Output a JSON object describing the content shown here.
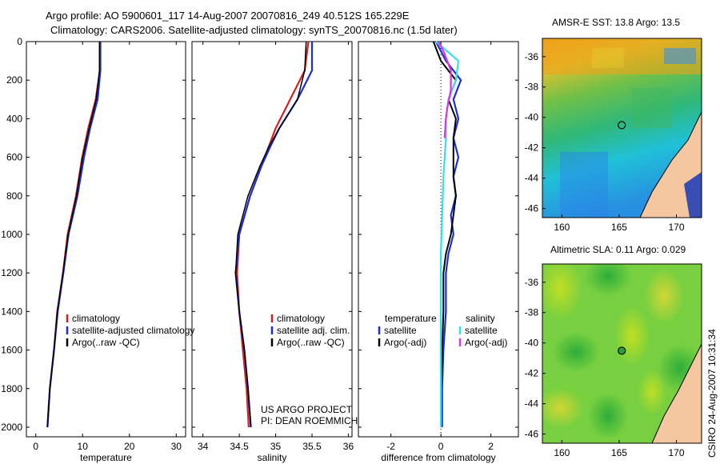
{
  "titles": {
    "line1": "Argo profile: AO 5900601_117 14-Aug-2007 20070816_249 40.512S 165.229E",
    "line2": "Climatology: CARS2006. Satellite-adjusted climatology: synTS_20070816.nc (1.5d later)"
  },
  "credit": "CSIRO 24-Aug-2007 10:31:34",
  "colors": {
    "climatology": "#d62020",
    "satellite": "#1a2fd6",
    "argo": "#000000",
    "satellite_salinity": "#33e0e8",
    "argo_adj_salinity": "#e030e0",
    "land": "#f5c7a0"
  },
  "chart_data": [
    {
      "type": "line",
      "xlabel": "temperature",
      "ylabel": "",
      "xlim": [
        -2,
        32
      ],
      "ylim": [
        2050,
        0
      ],
      "xticks": [
        "0",
        "10",
        "20",
        "30"
      ],
      "yticks": [
        "0",
        "200",
        "400",
        "600",
        "800",
        "1000",
        "1200",
        "1400",
        "1600",
        "1800",
        "2000"
      ],
      "legend_items": [
        "climatology",
        "satellite-adjusted climatology",
        "Argo(..raw -QC)"
      ],
      "series": [
        {
          "name": "climatology",
          "points": [
            [
              13.8,
              0
            ],
            [
              13.7,
              150
            ],
            [
              12.8,
              300
            ],
            [
              11.2,
              450
            ],
            [
              9.9,
              600
            ],
            [
              8.6,
              800
            ],
            [
              6.8,
              1000
            ],
            [
              5.8,
              1200
            ],
            [
              4.6,
              1400
            ],
            [
              3.9,
              1600
            ],
            [
              3.0,
              1800
            ],
            [
              2.5,
              2000
            ]
          ]
        },
        {
          "name": "satellite-adjusted climatology",
          "points": [
            [
              13.8,
              0
            ],
            [
              13.8,
              150
            ],
            [
              13.2,
              300
            ],
            [
              11.6,
              450
            ],
            [
              10.3,
              600
            ],
            [
              8.9,
              800
            ],
            [
              7.0,
              1000
            ],
            [
              5.9,
              1200
            ],
            [
              4.7,
              1400
            ],
            [
              3.9,
              1600
            ],
            [
              3.0,
              1800
            ],
            [
              2.5,
              2000
            ]
          ]
        },
        {
          "name": "Argo(..raw -QC)",
          "points": [
            [
              13.6,
              0
            ],
            [
              13.6,
              150
            ],
            [
              12.9,
              300
            ],
            [
              11.4,
              450
            ],
            [
              10.0,
              600
            ],
            [
              8.7,
              800
            ],
            [
              6.9,
              1000
            ],
            [
              5.8,
              1200
            ],
            [
              4.6,
              1400
            ],
            [
              3.9,
              1600
            ],
            [
              3.0,
              1800
            ],
            [
              2.5,
              2000
            ]
          ]
        }
      ]
    },
    {
      "type": "line",
      "xlabel": "salinity",
      "ylabel": "",
      "xlim": [
        33.85,
        36.05
      ],
      "ylim": [
        2050,
        0
      ],
      "xticks": [
        "34",
        "34.5",
        "35",
        "35.5",
        "36"
      ],
      "legend_items": [
        "climatology",
        "satellite adj. clim.",
        "Argo(..raw -QC)"
      ],
      "annotations": [
        "US ARGO PROJECT",
        "PI: DEAN ROEMMICH"
      ],
      "series": [
        {
          "name": "climatology",
          "points": [
            [
              35.45,
              0
            ],
            [
              35.4,
              150
            ],
            [
              35.2,
              300
            ],
            [
              35.0,
              450
            ],
            [
              34.9,
              550
            ],
            [
              34.8,
              650
            ],
            [
              34.65,
              800
            ],
            [
              34.5,
              1000
            ],
            [
              34.47,
              1200
            ],
            [
              34.5,
              1400
            ],
            [
              34.55,
              1600
            ],
            [
              34.6,
              1800
            ],
            [
              34.63,
              2000
            ]
          ]
        },
        {
          "name": "satellite adj. clim.",
          "points": [
            [
              35.5,
              0
            ],
            [
              35.5,
              150
            ],
            [
              35.3,
              300
            ],
            [
              35.05,
              450
            ],
            [
              34.92,
              550
            ],
            [
              34.8,
              650
            ],
            [
              34.65,
              800
            ],
            [
              34.5,
              1000
            ],
            [
              34.45,
              1200
            ],
            [
              34.5,
              1400
            ],
            [
              34.57,
              1600
            ],
            [
              34.62,
              1800
            ],
            [
              34.66,
              2000
            ]
          ]
        },
        {
          "name": "Argo(..raw -QC)",
          "points": [
            [
              35.42,
              0
            ],
            [
              35.4,
              150
            ],
            [
              35.3,
              300
            ],
            [
              35.05,
              450
            ],
            [
              34.9,
              550
            ],
            [
              34.78,
              650
            ],
            [
              34.62,
              800
            ],
            [
              34.48,
              1000
            ],
            [
              34.45,
              1200
            ],
            [
              34.5,
              1400
            ],
            [
              34.57,
              1600
            ],
            [
              34.62,
              1800
            ],
            [
              34.66,
              2000
            ]
          ]
        }
      ]
    },
    {
      "type": "line",
      "xlabel": "difference from climatology",
      "ylabel": "",
      "xlim": [
        -3.3,
        3.1
      ],
      "ylim": [
        2050,
        0
      ],
      "xticks": [
        "-2",
        "0",
        "2"
      ],
      "legend_items": [
        "temperature",
        "satellite",
        "Argo(-adj)",
        "salinity",
        "satellite",
        "Argo(-adj)"
      ],
      "series": [
        {
          "name": "temperature satellite",
          "points": [
            [
              -0.2,
              0
            ],
            [
              0.2,
              100
            ],
            [
              0.8,
              200
            ],
            [
              0.5,
              300
            ],
            [
              0.7,
              400
            ],
            [
              0.5,
              500
            ],
            [
              0.7,
              600
            ],
            [
              0.5,
              700
            ],
            [
              0.6,
              800
            ],
            [
              0.4,
              900
            ],
            [
              0.5,
              1000
            ],
            [
              0.3,
              1100
            ],
            [
              0.2,
              1200
            ],
            [
              0.2,
              1400
            ],
            [
              0.1,
              1600
            ],
            [
              0.05,
              1800
            ],
            [
              0.05,
              2000
            ]
          ]
        },
        {
          "name": "temperature Argo(-adj)",
          "points": [
            [
              -0.3,
              0
            ],
            [
              0.0,
              100
            ],
            [
              0.6,
              200
            ],
            [
              0.3,
              300
            ],
            [
              0.6,
              400
            ],
            [
              0.5,
              500
            ],
            [
              0.5,
              600
            ],
            [
              0.5,
              700
            ],
            [
              0.6,
              800
            ],
            [
              0.5,
              900
            ],
            [
              0.4,
              1000
            ],
            [
              0.2,
              1100
            ],
            [
              0.1,
              1200
            ],
            [
              0.1,
              1400
            ],
            [
              0.05,
              1600
            ],
            [
              0.0,
              1800
            ],
            [
              0.0,
              2000
            ]
          ]
        },
        {
          "name": "salinity satellite",
          "points": [
            [
              -0.2,
              0
            ],
            [
              0.7,
              100
            ],
            [
              0.6,
              200
            ],
            [
              0.3,
              300
            ],
            [
              0.2,
              400
            ],
            [
              0.2,
              500
            ],
            [
              0.1,
              700
            ],
            [
              0.05,
              900
            ],
            [
              0.0,
              1100
            ],
            [
              0.0,
              1400
            ],
            [
              0.0,
              1600
            ],
            [
              0.0,
              1800
            ],
            [
              0.0,
              2000
            ]
          ]
        },
        {
          "name": "salinity Argo(-adj)",
          "points": [
            [
              -0.1,
              0
            ],
            [
              0.1,
              50
            ],
            [
              0.4,
              150
            ],
            [
              0.4,
              250
            ],
            [
              0.25,
              350
            ],
            [
              0.2,
              400
            ],
            [
              0.15,
              500
            ]
          ]
        }
      ]
    },
    {
      "type": "heatmap",
      "title": "AMSR-E SST: 13.8 Argo: 13.5",
      "xticks": [
        "160",
        "165",
        "170"
      ],
      "yticks": [
        "-36",
        "-38",
        "-40",
        "-42",
        "-44",
        "-46"
      ],
      "xlim": [
        158.3,
        172.2
      ],
      "ylim": [
        -46.6,
        -34.8
      ]
    },
    {
      "type": "heatmap",
      "title": "Altimetric SLA: 0.11 Argo: 0.029",
      "xticks": [
        "160",
        "165",
        "170"
      ],
      "yticks": [
        "-36",
        "-38",
        "-40",
        "-42",
        "-44",
        "-46"
      ],
      "xlim": [
        158.3,
        172.2
      ],
      "ylim": [
        -46.6,
        -34.8
      ]
    }
  ]
}
